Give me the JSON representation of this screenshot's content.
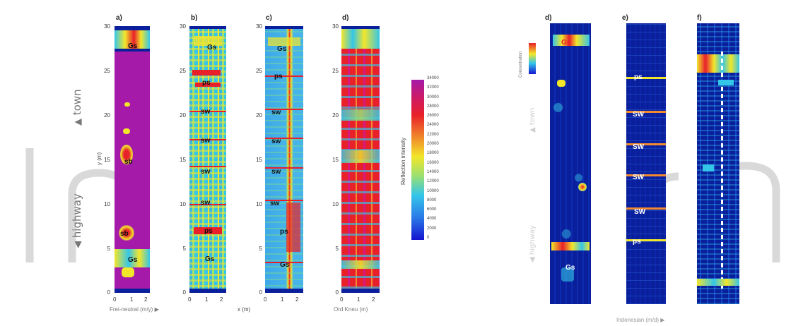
{
  "left_figure": {
    "panels": [
      {
        "letter": "a)",
        "features": [
          "Gs",
          "sb",
          "sb",
          "Gs"
        ]
      },
      {
        "letter": "b)",
        "features": [
          "Gs",
          "ps",
          "sw",
          "sw",
          "sw",
          "sw",
          "ps",
          "Gs"
        ]
      },
      {
        "letter": "c)",
        "features": [
          "Gs",
          "ps",
          "sw",
          "sw",
          "sw",
          "sw",
          "ps",
          "Gs"
        ]
      },
      {
        "letter": "d)",
        "features": []
      }
    ],
    "y_ticks": [
      "30",
      "25",
      "20",
      "15",
      "10",
      "5",
      "0"
    ],
    "x_ticks": [
      "0",
      "1",
      "2"
    ],
    "y_axis_label": "y (m)",
    "x_axis_labels": [
      "Frei-neutral (m/y) ▶",
      "x (m)",
      "Ord Kneu (m)"
    ],
    "side_labels": {
      "top": "town",
      "bottom": "highway"
    },
    "colorbar": {
      "title": "Reflection intensity",
      "ticks": [
        "34000",
        "32000",
        "30000",
        "28000",
        "26000",
        "24000",
        "22000",
        "20000",
        "18000",
        "16000",
        "14000",
        "12000",
        "10000",
        "8000",
        "6000",
        "4000",
        "2000",
        "0"
      ]
    }
  },
  "right_figure": {
    "panels": [
      {
        "letter": "d)",
        "features": [
          "Gs",
          "Gs"
        ]
      },
      {
        "letter": "e)",
        "features": [
          "ps",
          "SW",
          "SW",
          "SW",
          "SW",
          "ps"
        ]
      },
      {
        "letter": "f)",
        "features": []
      }
    ],
    "colorbar_title": "Concentration",
    "side_labels": {
      "top": "town",
      "bottom": "highway"
    },
    "x_axis_label": "Indonesian (m/d) ▶"
  },
  "colors": {
    "magenta": "#a51aa8",
    "deep_blue": "#0a1f9c",
    "navy": "#08137a",
    "cyan": "#34c6e8",
    "yellow": "#f2e62a",
    "red": "#e8202a",
    "watermark": "#d8d8d8"
  }
}
